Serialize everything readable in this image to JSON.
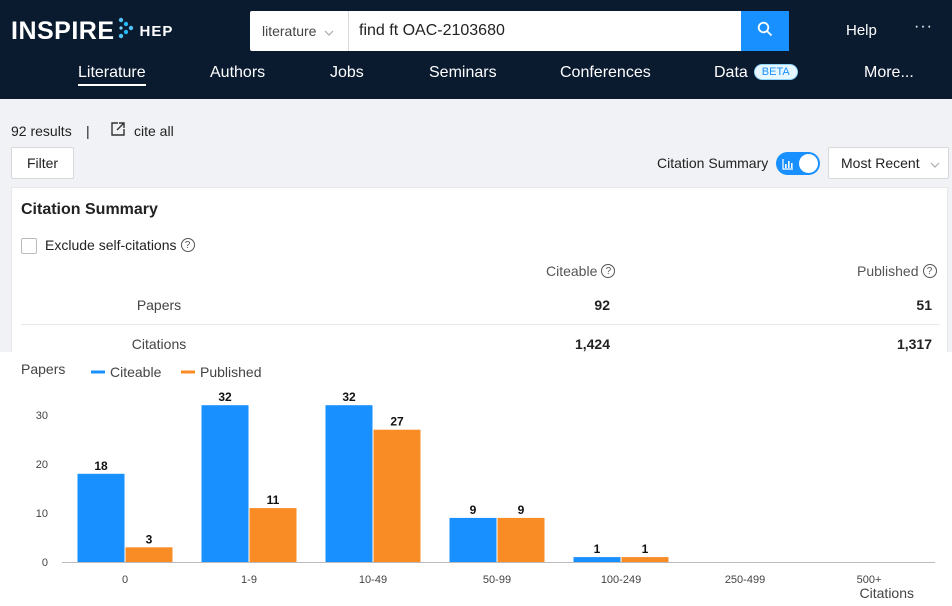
{
  "header": {
    "logo_text": "INSPIRE",
    "logo_suffix": "HEP",
    "search_scope": "literature",
    "search_query": "find ft OAC-2103680",
    "help_label": "Help",
    "more_dots": "···"
  },
  "nav": {
    "items": [
      {
        "label": "Literature"
      },
      {
        "label": "Authors"
      },
      {
        "label": "Jobs"
      },
      {
        "label": "Seminars"
      },
      {
        "label": "Conferences"
      },
      {
        "label": "Data",
        "badge": "BETA"
      },
      {
        "label": "More..."
      }
    ]
  },
  "toolbar": {
    "results_count": "92 results",
    "separator": "|",
    "cite_all": "cite all",
    "filter_label": "Filter",
    "citation_summary_label": "Citation Summary",
    "sort_value": "Most Recent"
  },
  "summary": {
    "title": "Citation Summary",
    "exclude_label": "Exclude self-citations",
    "col_citeable": "Citeable",
    "col_published": "Published",
    "rows": [
      {
        "label": "Papers",
        "citeable": "92",
        "published": "51"
      },
      {
        "label": "Citations",
        "citeable": "1,424",
        "published": "1,317"
      }
    ]
  },
  "chart_data": {
    "type": "bar",
    "ylabel": "Papers",
    "xlabel": "Citations",
    "categories": [
      "0",
      "1-9",
      "10-49",
      "50-99",
      "100-249",
      "250-499",
      "500+"
    ],
    "series": [
      {
        "name": "Citeable",
        "color": "#1890ff",
        "values": [
          18,
          32,
          32,
          9,
          1,
          0,
          0
        ]
      },
      {
        "name": "Published",
        "color": "#fa8c26",
        "values": [
          3,
          11,
          27,
          9,
          1,
          0,
          0
        ]
      }
    ],
    "ylim": [
      0,
      32
    ],
    "yticks": [
      0,
      10,
      20,
      30
    ],
    "legend": "top-left",
    "grid": false
  }
}
